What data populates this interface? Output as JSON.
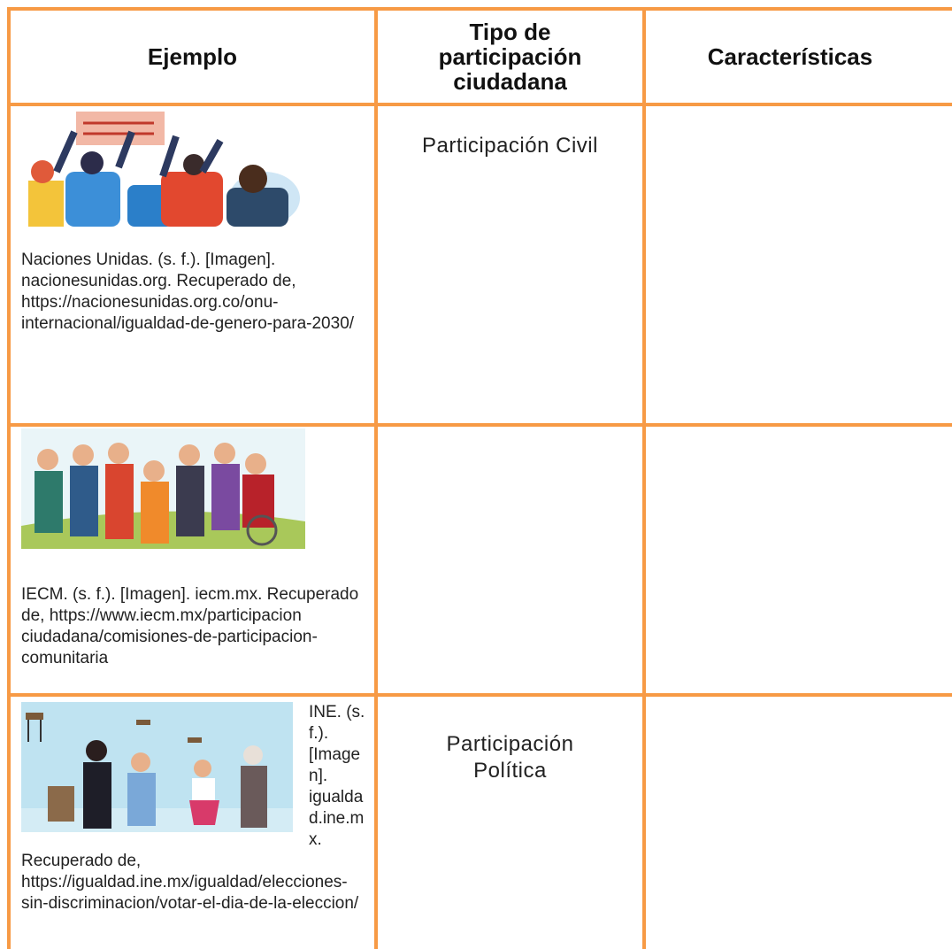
{
  "table": {
    "header": [
      "Ejemplo",
      "Tipo de participación ciudadana",
      "Características"
    ],
    "rows": [
      {
        "citation": "Naciones Unidas. (s. f.). [Imagen]. nacionesunidas.org. Recuperado de, https://nacionesunidas.org.co/onu-internacional/igualdad-de-genero-para-2030/",
        "type": "Participación Civil"
      },
      {
        "citation": "IECM. (s. f.). [Imagen]. iecm.mx. Recuperado de, https://www.iecm.mx/participacion ciudadana/comisiones-de-participacion-comunitaria"
      },
      {
        "citation": "INE. (s. f.). [Imagen]. igualdad.ine.mx. Recuperado de, https://igualdad.ine.mx/igualdad/elecciones-sin-discriminacion/votar-el-dia-de-la-eleccion/",
        "type": "Participación Política"
      }
    ]
  }
}
